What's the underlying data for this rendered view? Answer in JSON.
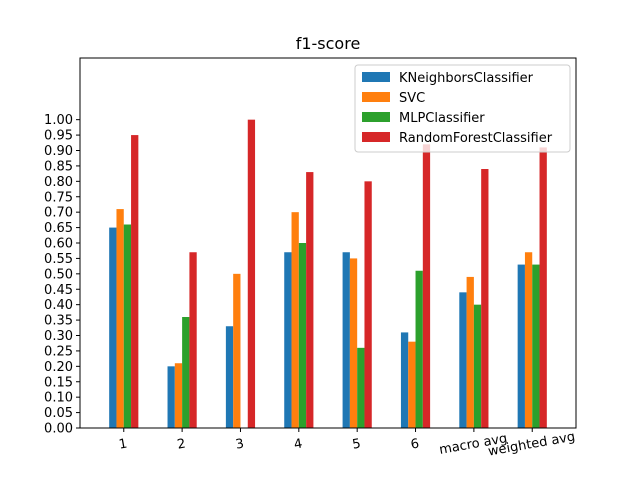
{
  "chart_data": {
    "type": "bar",
    "title": "f1-score",
    "xlabel": "",
    "ylabel": "",
    "categories": [
      "1",
      "2",
      "3",
      "4",
      "5",
      "6",
      "macro avg",
      "weighted avg"
    ],
    "series": [
      {
        "name": "KNeighborsClassifier",
        "color": "#1f77b4",
        "values": [
          0.65,
          0.2,
          0.33,
          0.57,
          0.57,
          0.31,
          0.44,
          0.53
        ]
      },
      {
        "name": "SVC",
        "color": "#ff7f0e",
        "values": [
          0.71,
          0.21,
          0.5,
          0.7,
          0.55,
          0.28,
          0.49,
          0.57
        ]
      },
      {
        "name": "MLPClassifier",
        "color": "#2ca02c",
        "values": [
          0.66,
          0.36,
          0.0,
          0.6,
          0.26,
          0.51,
          0.4,
          0.53
        ]
      },
      {
        "name": "RandomForestClassifier",
        "color": "#d62728",
        "values": [
          0.95,
          0.57,
          1.0,
          0.83,
          0.8,
          0.92,
          0.84,
          0.91
        ]
      }
    ],
    "ylim": [
      0,
      1.2
    ],
    "yticks": [
      "0.00",
      "0.05",
      "0.10",
      "0.15",
      "0.20",
      "0.25",
      "0.30",
      "0.35",
      "0.40",
      "0.45",
      "0.50",
      "0.55",
      "0.60",
      "0.65",
      "0.70",
      "0.75",
      "0.80",
      "0.85",
      "0.90",
      "0.95",
      "1.00"
    ],
    "grid": false,
    "legend_position": "top-right"
  }
}
